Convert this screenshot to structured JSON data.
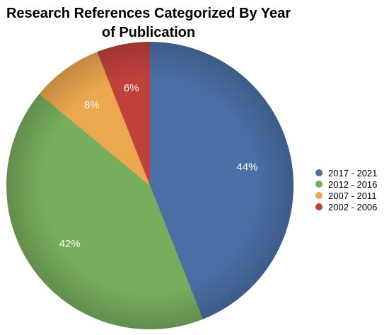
{
  "chart_data": {
    "type": "pie",
    "title_lines": [
      "Research References Categorized By Year",
      "of Publication"
    ],
    "slices": [
      {
        "label": "2017 - 2021",
        "value": 44,
        "value_label": "44%",
        "color": "#4a6fa5"
      },
      {
        "label": "2012 - 2016",
        "value": 42,
        "value_label": "42%",
        "color": "#77ad5c"
      },
      {
        "label": "2007 - 2011",
        "value": 8,
        "value_label": "8%",
        "color": "#eba84f"
      },
      {
        "label": "2002 - 2006",
        "value": 6,
        "value_label": "6%",
        "color": "#c0413c"
      }
    ],
    "start_angle": "12 o'clock",
    "direction": "clockwise",
    "legend_position": "right"
  }
}
